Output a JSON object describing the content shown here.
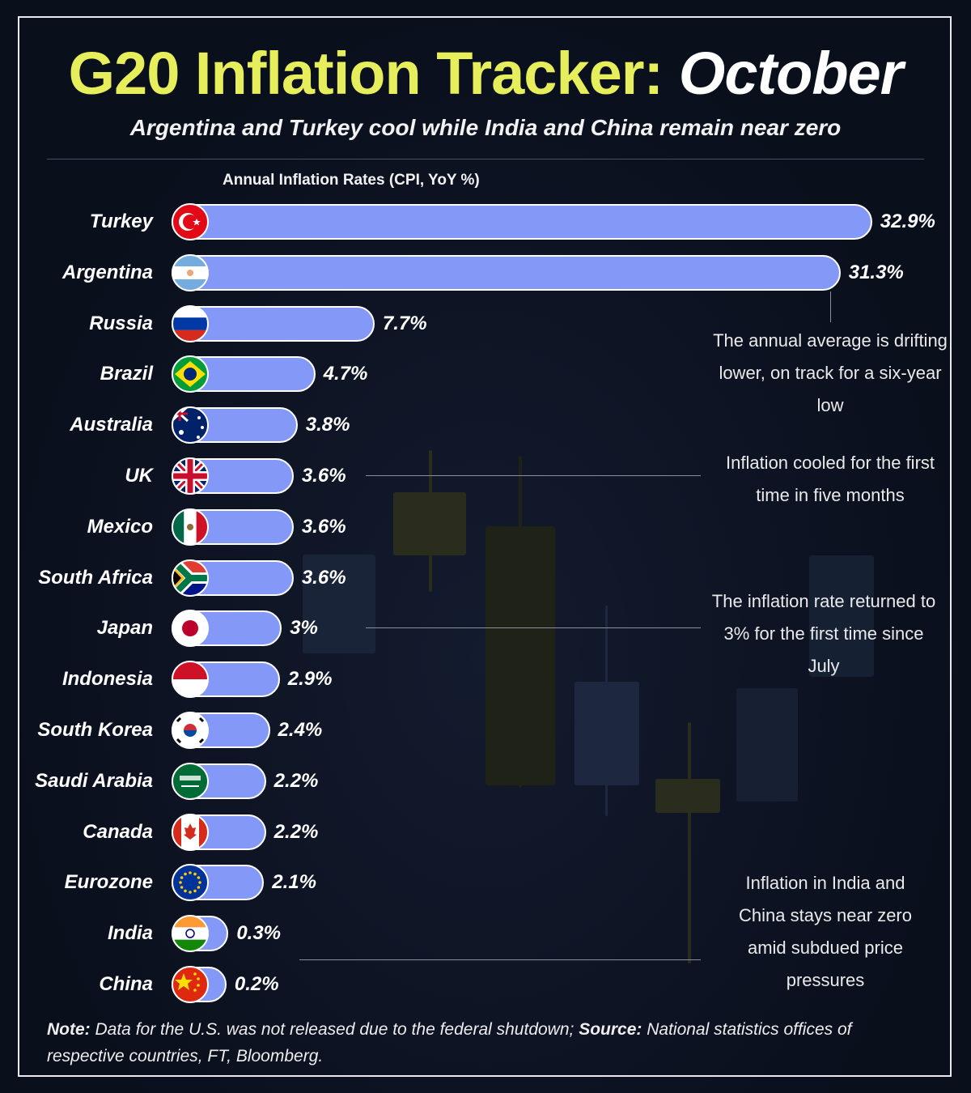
{
  "header": {
    "title_main": "G20 Inflation Tracker:",
    "title_month": "October",
    "subtitle": "Argentina and Turkey cool while India and China remain near zero"
  },
  "colors": {
    "title_accent": "#e6ef5b",
    "bar": "#8499f7",
    "background": "#0a0f1c"
  },
  "chart_data": {
    "type": "bar",
    "orientation": "horizontal",
    "title": "Annual Inflation Rates (CPI, YoY %)",
    "categories": [
      "Turkey",
      "Argentina",
      "Russia",
      "Brazil",
      "Australia",
      "UK",
      "Mexico",
      "South Africa",
      "Japan",
      "Indonesia",
      "South Korea",
      "Saudi Arabia",
      "Canada",
      "Eurozone",
      "India",
      "China"
    ],
    "values": [
      32.9,
      31.3,
      7.7,
      4.7,
      3.8,
      3.6,
      3.6,
      3.6,
      3,
      2.9,
      2.4,
      2.2,
      2.2,
      2.1,
      0.3,
      0.2
    ],
    "labels": [
      "32.9%",
      "31.3%",
      "7.7%",
      "4.7%",
      "3.8%",
      "3.6%",
      "3.6%",
      "3.6%",
      "3%",
      "2.9%",
      "2.4%",
      "2.2%",
      "2.2%",
      "2.1%",
      "0.3%",
      "0.2%"
    ],
    "flag_icons": [
      "turkey-flag",
      "argentina-flag",
      "russia-flag",
      "brazil-flag",
      "australia-flag",
      "uk-flag",
      "mexico-flag",
      "south-africa-flag",
      "japan-flag",
      "indonesia-flag",
      "south-korea-flag",
      "saudi-arabia-flag",
      "canada-flag",
      "eurozone-flag",
      "india-flag",
      "china-flag"
    ],
    "grid": false,
    "legend": "none"
  },
  "annotations": [
    {
      "text": "The annual average is drifting lower, on track for a six-year low"
    },
    {
      "text": "Inflation cooled for the first time in five months"
    },
    {
      "text": "The inflation rate returned to 3% for the first time since July"
    },
    {
      "text": "Inflation in India and China stays near zero amid subdued price pressures"
    }
  ],
  "footer": {
    "note_label": "Note:",
    "note_text": " Data for the U.S. was not released due to the federal shutdown; ",
    "source_label": "Source:",
    "source_text": " National statistics offices of respective countries, FT, Bloomberg."
  }
}
